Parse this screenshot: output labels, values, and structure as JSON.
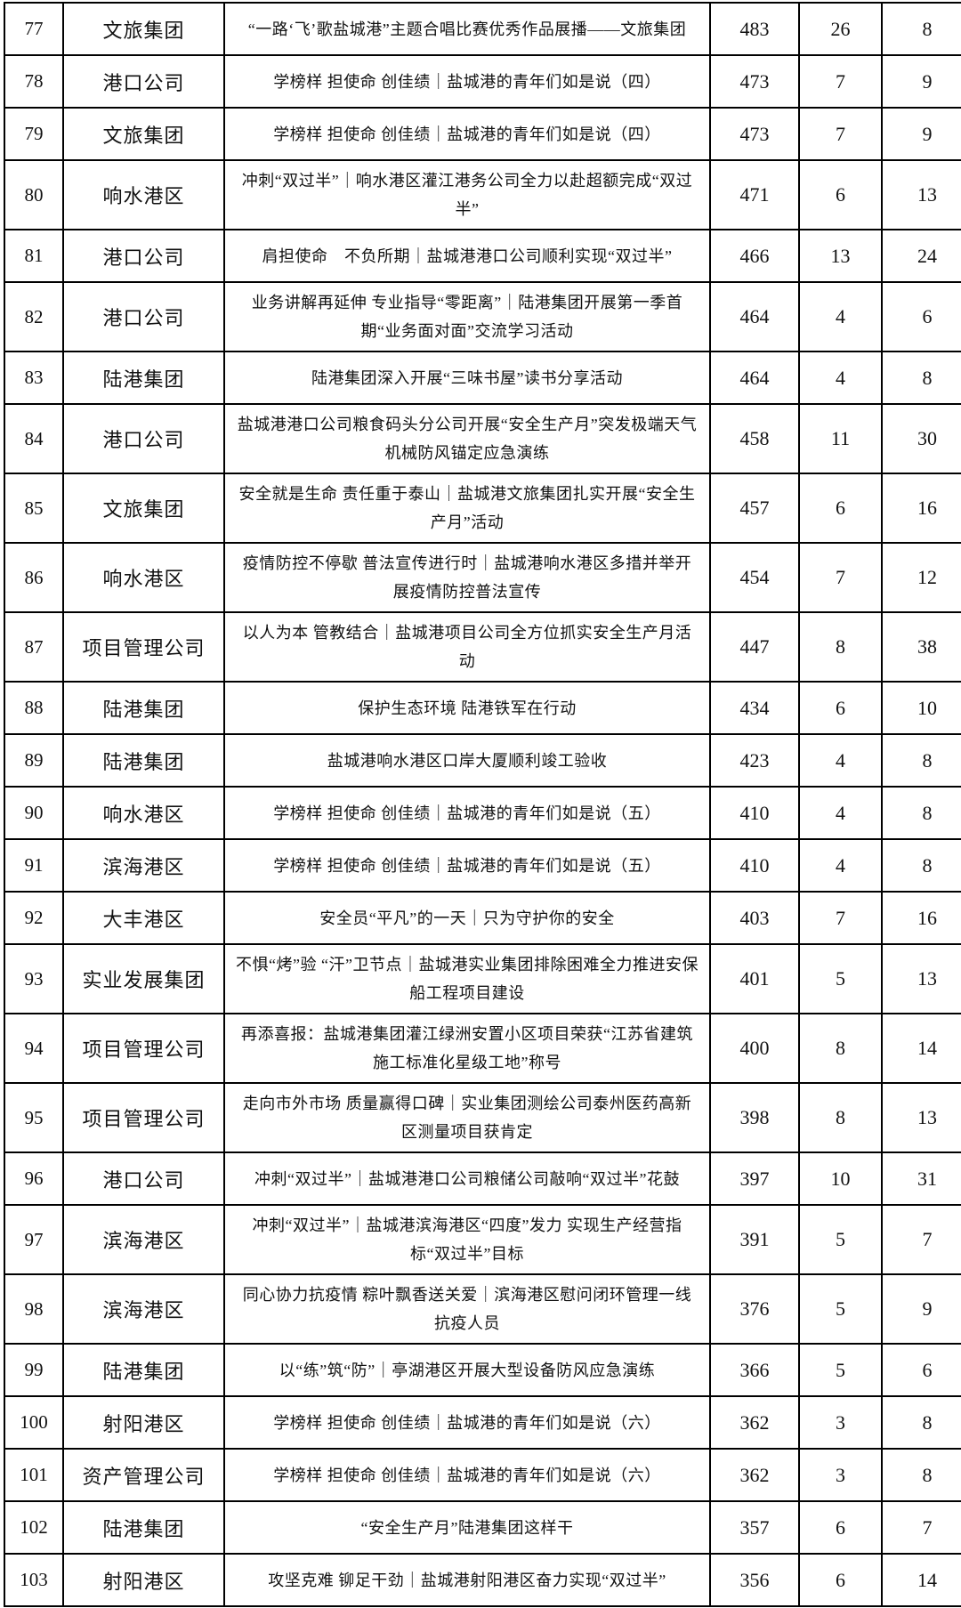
{
  "table": {
    "rows": [
      {
        "rank": "77",
        "org": "文旅集团",
        "title": "“一路‘飞’歌盐城港”主题合唱比赛优秀作品展播——文旅集团",
        "nums": [
          "483",
          "26",
          "8"
        ]
      },
      {
        "rank": "78",
        "org": "港口公司",
        "title": "学榜样 担使命 创佳绩｜盐城港的青年们如是说（四）",
        "nums": [
          "473",
          "7",
          "9"
        ]
      },
      {
        "rank": "79",
        "org": "文旅集团",
        "title": "学榜样 担使命 创佳绩｜盐城港的青年们如是说（四）",
        "nums": [
          "473",
          "7",
          "9"
        ]
      },
      {
        "rank": "80",
        "org": "响水港区",
        "title": "冲刺“双过半”｜响水港区灌江港务公司全力以赴超额完成“双过半”",
        "nums": [
          "471",
          "6",
          "13"
        ]
      },
      {
        "rank": "81",
        "org": "港口公司",
        "title": "肩担使命　不负所期｜盐城港港口公司顺利实现“双过半”",
        "nums": [
          "466",
          "13",
          "24"
        ]
      },
      {
        "rank": "82",
        "org": "港口公司",
        "title": "业务讲解再延伸 专业指导“零距离”｜陆港集团开展第一季首期“业务面对面”交流学习活动",
        "nums": [
          "464",
          "4",
          "6"
        ]
      },
      {
        "rank": "83",
        "org": "陆港集团",
        "title": "陆港集团深入开展“三味书屋”读书分享活动",
        "nums": [
          "464",
          "4",
          "8"
        ]
      },
      {
        "rank": "84",
        "org": "港口公司",
        "title": "盐城港港口公司粮食码头分公司开展“安全生产月”突发极端天气机械防风锚定应急演练",
        "nums": [
          "458",
          "11",
          "30"
        ]
      },
      {
        "rank": "85",
        "org": "文旅集团",
        "title": "安全就是生命 责任重于泰山｜盐城港文旅集团扎实开展“安全生产月”活动",
        "nums": [
          "457",
          "6",
          "16"
        ]
      },
      {
        "rank": "86",
        "org": "响水港区",
        "title": "疫情防控不停歇 普法宣传进行时｜盐城港响水港区多措并举开展疫情防控普法宣传",
        "nums": [
          "454",
          "7",
          "12"
        ]
      },
      {
        "rank": "87",
        "org": "项目管理公司",
        "title": "以人为本 管教结合｜盐城港项目公司全方位抓实安全生产月活动",
        "nums": [
          "447",
          "8",
          "38"
        ]
      },
      {
        "rank": "88",
        "org": "陆港集团",
        "title": "保护生态环境 陆港铁军在行动",
        "nums": [
          "434",
          "6",
          "10"
        ]
      },
      {
        "rank": "89",
        "org": "陆港集团",
        "title": "盐城港响水港区口岸大厦顺利竣工验收",
        "nums": [
          "423",
          "4",
          "8"
        ]
      },
      {
        "rank": "90",
        "org": "响水港区",
        "title": "学榜样 担使命 创佳绩｜盐城港的青年们如是说（五）",
        "nums": [
          "410",
          "4",
          "8"
        ]
      },
      {
        "rank": "91",
        "org": "滨海港区",
        "title": "学榜样 担使命 创佳绩｜盐城港的青年们如是说（五）",
        "nums": [
          "410",
          "4",
          "8"
        ]
      },
      {
        "rank": "92",
        "org": "大丰港区",
        "title": "安全员“平凡”的一天｜只为守护你的安全",
        "nums": [
          "403",
          "7",
          "16"
        ]
      },
      {
        "rank": "93",
        "org": "实业发展集团",
        "title": "不惧“烤”验 “汗”卫节点｜盐城港实业集团排除困难全力推进安保船工程项目建设",
        "nums": [
          "401",
          "5",
          "13"
        ]
      },
      {
        "rank": "94",
        "org": "项目管理公司",
        "title": "再添喜报：盐城港集团灌江绿洲安置小区项目荣获“江苏省建筑施工标准化星级工地”称号",
        "nums": [
          "400",
          "8",
          "14"
        ]
      },
      {
        "rank": "95",
        "org": "项目管理公司",
        "title": "走向市外市场 质量赢得口碑｜实业集团测绘公司泰州医药高新区测量项目获肯定",
        "nums": [
          "398",
          "8",
          "13"
        ]
      },
      {
        "rank": "96",
        "org": "港口公司",
        "title": "冲刺“双过半”｜盐城港港口公司粮储公司敲响“双过半”花鼓",
        "nums": [
          "397",
          "10",
          "31"
        ]
      },
      {
        "rank": "97",
        "org": "滨海港区",
        "title": "冲刺“双过半”｜盐城港滨海港区“四度”发力 实现生产经营指标“双过半”目标",
        "nums": [
          "391",
          "5",
          "7"
        ]
      },
      {
        "rank": "98",
        "org": "滨海港区",
        "title": "同心协力抗疫情 粽叶飘香送关爱｜滨海港区慰问闭环管理一线抗疫人员",
        "nums": [
          "376",
          "5",
          "9"
        ]
      },
      {
        "rank": "99",
        "org": "陆港集团",
        "title": "以“练”筑“防”｜亭湖港区开展大型设备防风应急演练",
        "nums": [
          "366",
          "5",
          "6"
        ]
      },
      {
        "rank": "100",
        "org": "射阳港区",
        "title": "学榜样 担使命 创佳绩｜盐城港的青年们如是说（六）",
        "nums": [
          "362",
          "3",
          "8"
        ]
      },
      {
        "rank": "101",
        "org": "资产管理公司",
        "title": "学榜样 担使命 创佳绩｜盐城港的青年们如是说（六）",
        "nums": [
          "362",
          "3",
          "8"
        ]
      },
      {
        "rank": "102",
        "org": "陆港集团",
        "title": "“安全生产月”陆港集团这样干",
        "nums": [
          "357",
          "6",
          "7"
        ]
      },
      {
        "rank": "103",
        "org": "射阳港区",
        "title": "攻坚克难 铆足干劲｜盐城港射阳港区奋力实现“双过半”",
        "nums": [
          "356",
          "6",
          "14"
        ]
      }
    ]
  }
}
